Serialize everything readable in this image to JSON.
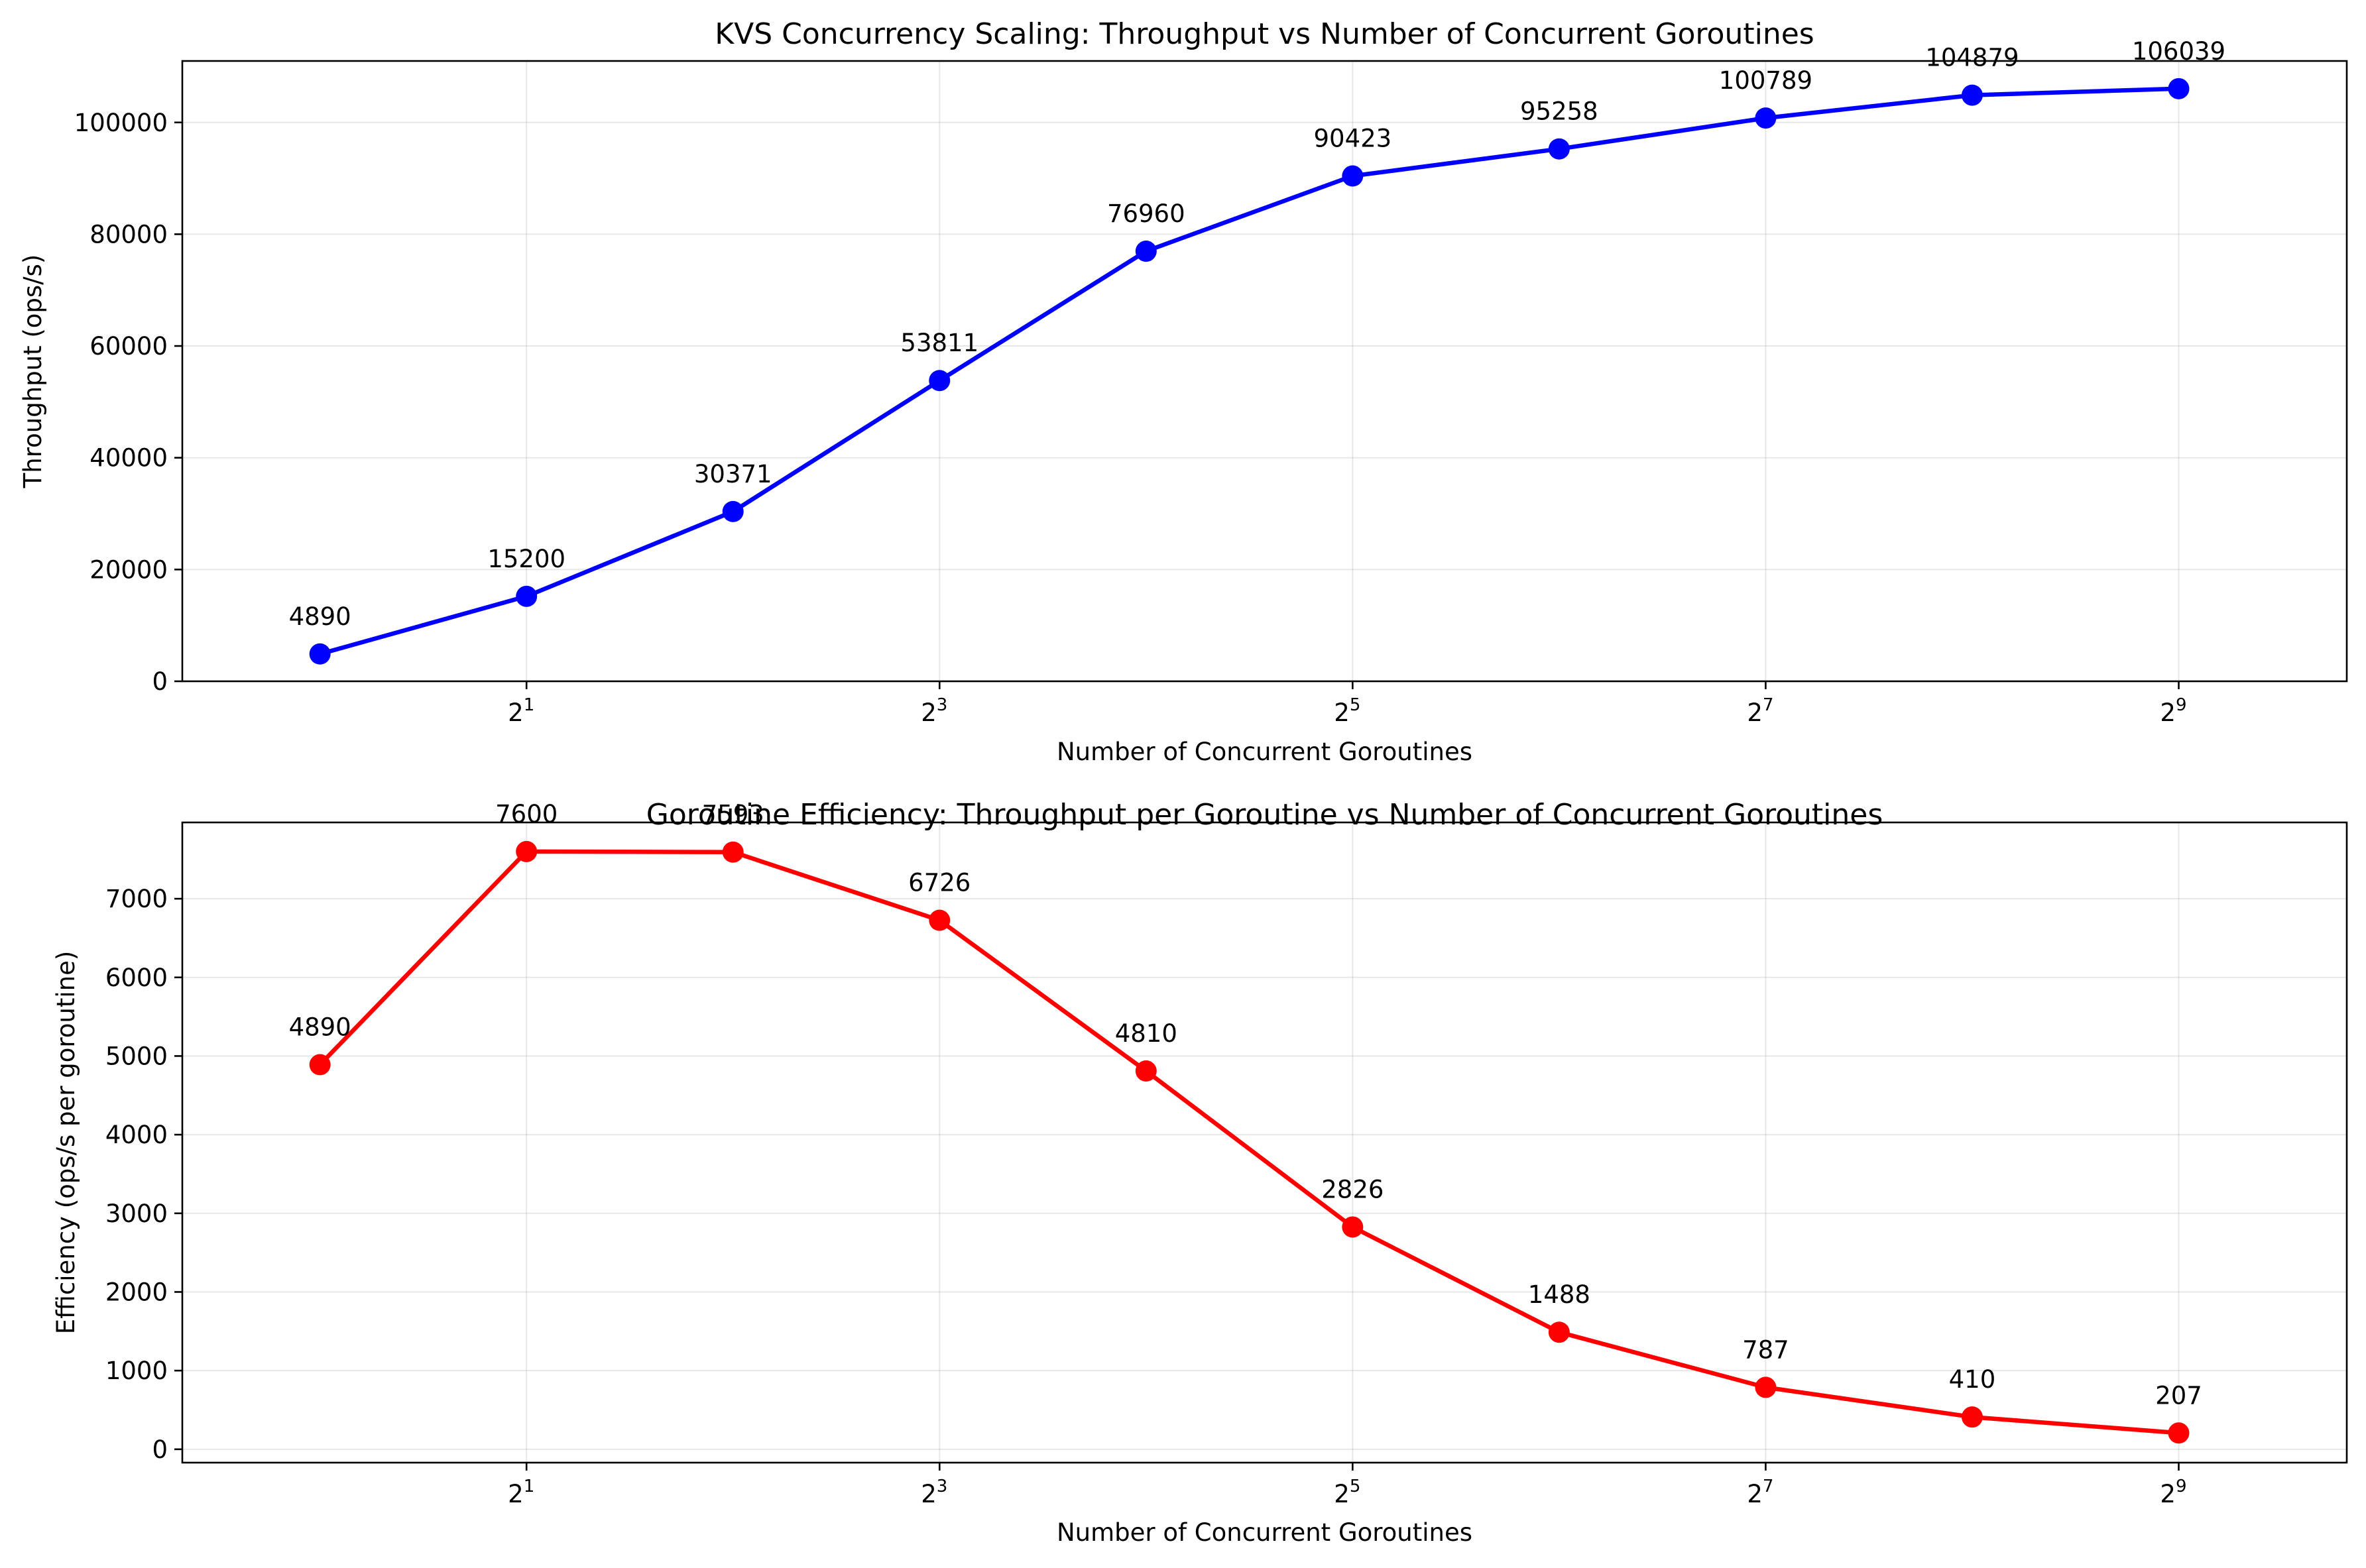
{
  "chart_data": [
    {
      "type": "line",
      "title": "KVS Concurrency Scaling: Throughput vs Number of Concurrent Goroutines",
      "xlabel": "Number of Concurrent Goroutines",
      "ylabel": "Throughput (ops/s)",
      "x_scale": "log2",
      "x": [
        1,
        2,
        4,
        8,
        16,
        32,
        64,
        128,
        256,
        512
      ],
      "xlim": [
        0.63,
        900
      ],
      "xticks": [
        2,
        8,
        32,
        128,
        512
      ],
      "xtick_bases": [
        "2",
        "2",
        "2",
        "2",
        "2"
      ],
      "xtick_exps": [
        "1",
        "3",
        "5",
        "7",
        "9"
      ],
      "ylim": [
        0,
        111000
      ],
      "yticks": [
        0,
        20000,
        40000,
        60000,
        80000,
        100000
      ],
      "ytick_labels": [
        "0",
        "20000",
        "40000",
        "60000",
        "80000",
        "100000"
      ],
      "grid": true,
      "color": "#0000ff",
      "series": [
        {
          "values": [
            4890,
            15200,
            30371,
            53811,
            76960,
            90423,
            95258,
            100789,
            104879,
            106039
          ],
          "labels": [
            "4890",
            "15200",
            "30371",
            "53811",
            "76960",
            "90423",
            "95258",
            "100789",
            "104879",
            "106039"
          ]
        }
      ]
    },
    {
      "type": "line",
      "title": "Goroutine Efficiency: Throughput per Goroutine vs Number of Concurrent Goroutines",
      "xlabel": "Number of Concurrent Goroutines",
      "ylabel": "Efficiency (ops/s per goroutine)",
      "x_scale": "log2",
      "x": [
        1,
        2,
        4,
        8,
        16,
        32,
        64,
        128,
        256,
        512
      ],
      "xlim": [
        0.63,
        900
      ],
      "xticks": [
        2,
        8,
        32,
        128,
        512
      ],
      "xtick_bases": [
        "2",
        "2",
        "2",
        "2",
        "2"
      ],
      "xtick_exps": [
        "1",
        "3",
        "5",
        "7",
        "9"
      ],
      "ylim": [
        -170,
        7970
      ],
      "yticks": [
        0,
        1000,
        2000,
        3000,
        4000,
        5000,
        6000,
        7000
      ],
      "ytick_labels": [
        "0",
        "1000",
        "2000",
        "3000",
        "4000",
        "5000",
        "6000",
        "7000"
      ],
      "grid": true,
      "color": "#ff0000",
      "series": [
        {
          "values": [
            4890,
            7600,
            7593,
            6726,
            4810,
            2826,
            1488,
            787,
            410,
            207
          ],
          "labels": [
            "4890",
            "7600",
            "7593",
            "6726",
            "4810",
            "2826",
            "1488",
            "787",
            "410",
            "207"
          ]
        }
      ]
    }
  ]
}
